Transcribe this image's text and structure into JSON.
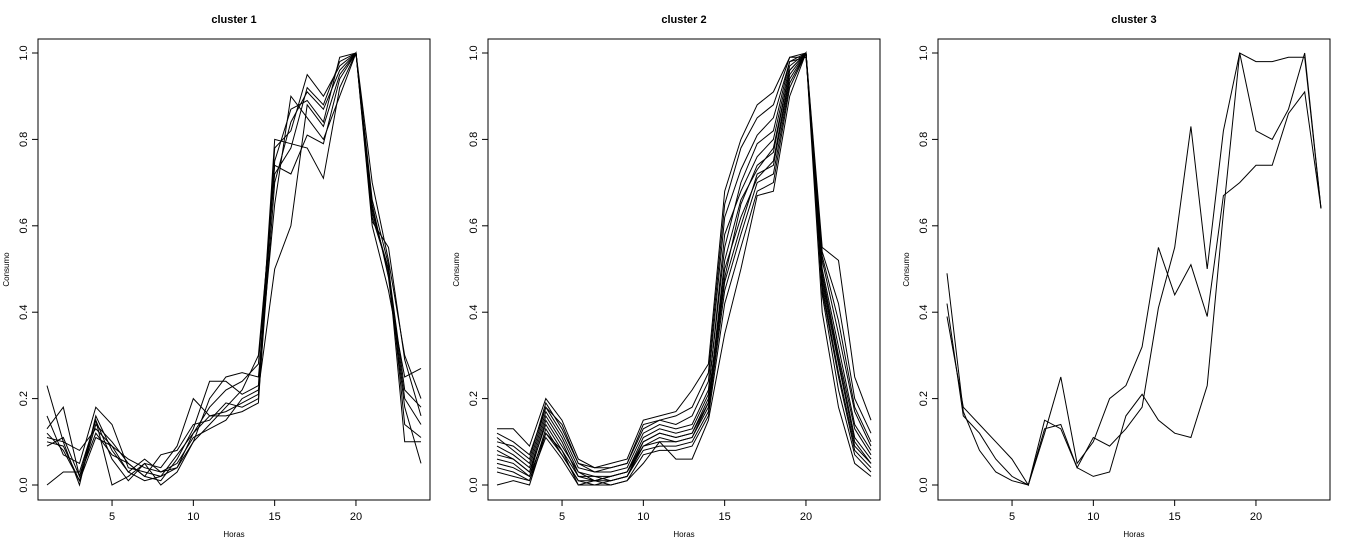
{
  "chart_data": [
    {
      "type": "line",
      "title": "cluster 1",
      "xlabel": "Horas",
      "ylabel": "Consumo",
      "xlim": [
        1,
        24
      ],
      "ylim": [
        0,
        1
      ],
      "xticks": [
        5,
        10,
        15,
        20
      ],
      "yticks": [
        0.0,
        0.2,
        0.4,
        0.6,
        0.8,
        1.0
      ],
      "ytick_labels": [
        "0.0",
        "0.2",
        "0.4",
        "0.6",
        "0.8",
        "1.0"
      ],
      "x": [
        1,
        2,
        3,
        4,
        5,
        6,
        7,
        8,
        9,
        10,
        11,
        12,
        13,
        14,
        15,
        16,
        17,
        18,
        19,
        20,
        21,
        22,
        23,
        24
      ],
      "series": [
        {
          "values": [
            0.23,
            0.1,
            0.0,
            0.16,
            0.08,
            0.03,
            0.06,
            0.03,
            0.05,
            0.11,
            0.13,
            0.15,
            0.2,
            0.22,
            0.5,
            0.6,
            0.88,
            0.83,
            0.95,
            1.0,
            0.6,
            0.45,
            0.25,
            0.27
          ]
        },
        {
          "values": [
            0.16,
            0.07,
            0.05,
            0.18,
            0.14,
            0.04,
            0.03,
            0.02,
            0.07,
            0.12,
            0.16,
            0.17,
            0.19,
            0.21,
            0.78,
            0.82,
            0.95,
            0.9,
            0.97,
            1.0,
            0.7,
            0.52,
            0.3,
            0.2
          ]
        },
        {
          "values": [
            0.0,
            0.03,
            0.03,
            0.15,
            0.0,
            0.02,
            0.05,
            0.0,
            0.03,
            0.1,
            0.2,
            0.25,
            0.26,
            0.25,
            0.65,
            0.9,
            0.85,
            0.8,
            0.9,
            1.0,
            0.62,
            0.5,
            0.1,
            0.1
          ]
        },
        {
          "values": [
            0.11,
            0.1,
            0.08,
            0.13,
            0.09,
            0.06,
            0.04,
            0.03,
            0.04,
            0.1,
            0.14,
            0.18,
            0.22,
            0.3,
            0.72,
            0.78,
            0.92,
            0.88,
            0.98,
            1.0,
            0.65,
            0.48,
            0.18,
            0.05
          ]
        },
        {
          "values": [
            0.13,
            0.18,
            0.02,
            0.12,
            0.07,
            0.05,
            0.02,
            0.01,
            0.06,
            0.13,
            0.24,
            0.24,
            0.21,
            0.23,
            0.8,
            0.79,
            0.78,
            0.71,
            0.92,
            1.0,
            0.61,
            0.55,
            0.29,
            0.16
          ]
        },
        {
          "values": [
            0.1,
            0.09,
            0.01,
            0.14,
            0.1,
            0.05,
            0.02,
            0.07,
            0.08,
            0.14,
            0.15,
            0.19,
            0.18,
            0.2,
            0.7,
            0.84,
            0.91,
            0.87,
            0.96,
            1.0,
            0.63,
            0.5,
            0.22,
            0.18
          ]
        },
        {
          "values": [
            0.09,
            0.11,
            0.02,
            0.15,
            0.06,
            0.01,
            0.05,
            0.04,
            0.09,
            0.2,
            0.16,
            0.16,
            0.17,
            0.19,
            0.75,
            0.87,
            0.89,
            0.84,
            0.99,
            1.0,
            0.66,
            0.51,
            0.14,
            0.11
          ]
        },
        {
          "values": [
            0.12,
            0.08,
            0.01,
            0.11,
            0.09,
            0.03,
            0.01,
            0.02,
            0.04,
            0.12,
            0.18,
            0.22,
            0.24,
            0.28,
            0.74,
            0.72,
            0.81,
            0.79,
            0.94,
            1.0,
            0.64,
            0.49,
            0.2,
            0.14
          ]
        }
      ]
    },
    {
      "type": "line",
      "title": "cluster 2",
      "xlabel": "Horas",
      "ylabel": "Consumo",
      "xlim": [
        1,
        24
      ],
      "ylim": [
        0,
        1
      ],
      "xticks": [
        5,
        10,
        15,
        20
      ],
      "yticks": [
        0.0,
        0.2,
        0.4,
        0.6,
        0.8,
        1.0
      ],
      "ytick_labels": [
        "0.0",
        "0.2",
        "0.4",
        "0.6",
        "0.8",
        "1.0"
      ],
      "x": [
        1,
        2,
        3,
        4,
        5,
        6,
        7,
        8,
        9,
        10,
        11,
        12,
        13,
        14,
        15,
        16,
        17,
        18,
        19,
        20,
        21,
        22,
        23,
        24
      ],
      "series": [
        {
          "values": [
            0.13,
            0.13,
            0.09,
            0.2,
            0.15,
            0.06,
            0.04,
            0.05,
            0.06,
            0.15,
            0.16,
            0.17,
            0.22,
            0.28,
            0.68,
            0.8,
            0.88,
            0.91,
            0.99,
            1.0,
            0.55,
            0.52,
            0.25,
            0.15
          ]
        },
        {
          "values": [
            0.0,
            0.01,
            0.0,
            0.12,
            0.08,
            0.0,
            0.0,
            0.0,
            0.01,
            0.05,
            0.1,
            0.06,
            0.06,
            0.15,
            0.35,
            0.5,
            0.67,
            0.68,
            0.9,
            1.0,
            0.4,
            0.18,
            0.05,
            0.02
          ]
        },
        {
          "values": [
            0.11,
            0.08,
            0.05,
            0.18,
            0.12,
            0.04,
            0.03,
            0.03,
            0.04,
            0.12,
            0.14,
            0.13,
            0.14,
            0.22,
            0.55,
            0.7,
            0.79,
            0.82,
            0.98,
            0.99,
            0.52,
            0.35,
            0.17,
            0.09
          ]
        },
        {
          "values": [
            0.08,
            0.06,
            0.03,
            0.16,
            0.1,
            0.02,
            0.02,
            0.01,
            0.02,
            0.1,
            0.12,
            0.11,
            0.12,
            0.2,
            0.48,
            0.65,
            0.74,
            0.77,
            0.96,
            1.0,
            0.49,
            0.3,
            0.13,
            0.07
          ]
        },
        {
          "values": [
            0.06,
            0.05,
            0.02,
            0.15,
            0.09,
            0.03,
            0.01,
            0.02,
            0.03,
            0.09,
            0.11,
            0.1,
            0.11,
            0.19,
            0.5,
            0.62,
            0.71,
            0.75,
            0.95,
            1.0,
            0.47,
            0.28,
            0.1,
            0.05
          ]
        },
        {
          "values": [
            0.04,
            0.03,
            0.01,
            0.13,
            0.07,
            0.01,
            0.0,
            0.01,
            0.02,
            0.08,
            0.09,
            0.09,
            0.1,
            0.17,
            0.45,
            0.58,
            0.7,
            0.72,
            0.93,
            1.0,
            0.45,
            0.25,
            0.08,
            0.04
          ]
        },
        {
          "values": [
            0.09,
            0.07,
            0.04,
            0.17,
            0.11,
            0.03,
            0.02,
            0.02,
            0.03,
            0.11,
            0.13,
            0.12,
            0.13,
            0.21,
            0.58,
            0.68,
            0.76,
            0.8,
            0.97,
            1.0,
            0.5,
            0.32,
            0.14,
            0.08
          ]
        },
        {
          "values": [
            0.1,
            0.09,
            0.06,
            0.19,
            0.13,
            0.05,
            0.03,
            0.04,
            0.05,
            0.13,
            0.15,
            0.14,
            0.16,
            0.24,
            0.62,
            0.73,
            0.81,
            0.85,
            0.98,
            1.0,
            0.53,
            0.38,
            0.18,
            0.1
          ]
        },
        {
          "values": [
            0.03,
            0.02,
            0.01,
            0.11,
            0.06,
            0.0,
            0.01,
            0.0,
            0.01,
            0.07,
            0.08,
            0.08,
            0.09,
            0.16,
            0.42,
            0.55,
            0.68,
            0.7,
            0.92,
            1.0,
            0.44,
            0.22,
            0.07,
            0.03
          ]
        },
        {
          "values": [
            0.07,
            0.06,
            0.03,
            0.14,
            0.08,
            0.02,
            0.01,
            0.02,
            0.03,
            0.1,
            0.12,
            0.11,
            0.12,
            0.19,
            0.52,
            0.66,
            0.73,
            0.78,
            0.96,
            1.0,
            0.48,
            0.29,
            0.11,
            0.06
          ]
        },
        {
          "values": [
            0.05,
            0.04,
            0.02,
            0.12,
            0.07,
            0.01,
            0.01,
            0.01,
            0.02,
            0.09,
            0.1,
            0.1,
            0.11,
            0.18,
            0.47,
            0.6,
            0.72,
            0.74,
            0.94,
            1.0,
            0.46,
            0.26,
            0.09,
            0.05
          ]
        },
        {
          "values": [
            0.12,
            0.1,
            0.07,
            0.18,
            0.14,
            0.05,
            0.04,
            0.04,
            0.05,
            0.14,
            0.15,
            0.16,
            0.18,
            0.26,
            0.65,
            0.78,
            0.85,
            0.88,
            0.99,
            0.99,
            0.54,
            0.42,
            0.2,
            0.12
          ]
        }
      ]
    },
    {
      "type": "line",
      "title": "cluster 3",
      "xlabel": "Horas",
      "ylabel": "Consumo",
      "xlim": [
        1,
        24
      ],
      "ylim": [
        0,
        1
      ],
      "xticks": [
        5,
        10,
        15,
        20
      ],
      "yticks": [
        0.0,
        0.2,
        0.4,
        0.6,
        0.8,
        1.0
      ],
      "ytick_labels": [
        "0.0",
        "0.2",
        "0.4",
        "0.6",
        "0.8",
        "1.0"
      ],
      "x": [
        1,
        2,
        3,
        4,
        5,
        6,
        7,
        8,
        9,
        10,
        11,
        12,
        13,
        14,
        15,
        16,
        17,
        18,
        19,
        20,
        21,
        22,
        23,
        24
      ],
      "series": [
        {
          "values": [
            0.49,
            0.17,
            0.08,
            0.03,
            0.01,
            0.0,
            0.15,
            0.13,
            0.04,
            0.11,
            0.09,
            0.13,
            0.18,
            0.41,
            0.55,
            0.83,
            0.5,
            0.82,
            1.0,
            0.82,
            0.8,
            0.87,
            1.0,
            0.64
          ]
        },
        {
          "values": [
            0.42,
            0.16,
            0.12,
            0.06,
            0.02,
            0.0,
            0.12,
            0.25,
            0.05,
            0.1,
            0.2,
            0.23,
            0.32,
            0.55,
            0.44,
            0.51,
            0.39,
            0.67,
            0.7,
            0.74,
            0.74,
            0.86,
            0.91,
            0.64
          ]
        },
        {
          "values": [
            0.39,
            0.18,
            0.14,
            0.1,
            0.06,
            0.0,
            0.13,
            0.14,
            0.04,
            0.02,
            0.03,
            0.16,
            0.21,
            0.15,
            0.12,
            0.11,
            0.23,
            0.63,
            1.0,
            0.98,
            0.98,
            0.99,
            0.99,
            0.64
          ]
        }
      ]
    }
  ]
}
